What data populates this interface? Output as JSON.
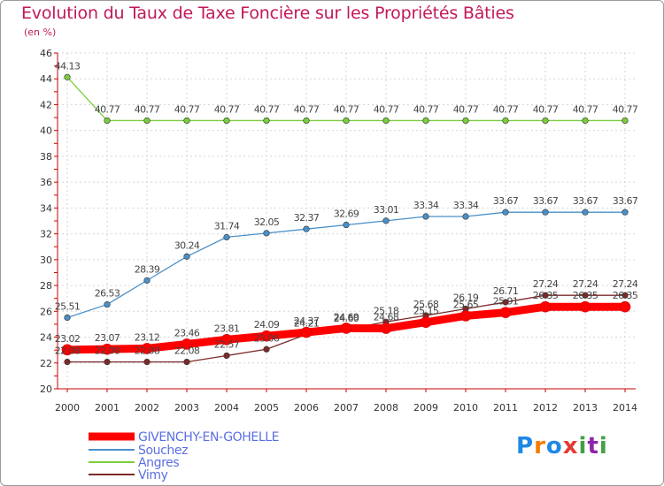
{
  "header": {
    "title": "Evolution du Taux de Taxe Foncière sur les Propriétés Bâties",
    "unit": "(en %)"
  },
  "logo": {
    "text": "Proxiti",
    "letters": [
      "P",
      "r",
      "o",
      "x",
      "i",
      "t",
      "i"
    ]
  },
  "chart_data": {
    "type": "line",
    "title": "Evolution du Taux de Taxe Foncière sur les Propriétés Bâties",
    "ylabel": "(en %)",
    "xlabel": "",
    "ylim": [
      20,
      46
    ],
    "yticks": [
      20,
      22,
      24,
      26,
      28,
      30,
      32,
      34,
      36,
      38,
      40,
      42,
      44,
      46
    ],
    "categories": [
      "2000",
      "2001",
      "2002",
      "2003",
      "2004",
      "2005",
      "2006",
      "2007",
      "2008",
      "2009",
      "2010",
      "2011",
      "2012",
      "2013",
      "2014"
    ],
    "grid": true,
    "legend_position": "bottom-left",
    "series": [
      {
        "name": "GIVENCHY-EN-GOHELLE",
        "color": "#ff0000",
        "values": [
          23.02,
          23.07,
          23.12,
          23.46,
          23.81,
          24.09,
          24.37,
          24.69,
          24.68,
          25.15,
          25.65,
          25.91,
          26.35,
          26.35,
          26.35
        ],
        "labels": [
          "23.02",
          "23.07",
          "23.12",
          "23.46",
          "23.81",
          "24.09",
          "24.37",
          "24.69",
          "24.68",
          "25.15",
          "25.65",
          "25.91",
          "26.35",
          "26.35",
          "26.35"
        ]
      },
      {
        "name": "Souchez",
        "color": "#4a90c8",
        "values": [
          25.51,
          26.53,
          28.39,
          30.24,
          31.74,
          32.05,
          32.37,
          32.69,
          33.01,
          33.34,
          33.34,
          33.67,
          33.67,
          33.67,
          33.67
        ],
        "labels": [
          "25.51",
          "26.53",
          "28.39",
          "30.24",
          "31.74",
          "32.05",
          "32.37",
          "32.69",
          "33.01",
          "33.34",
          "33.34",
          "33.67",
          "33.67",
          "33.67",
          "33.67"
        ]
      },
      {
        "name": "Angres",
        "color": "#7acd3e",
        "values": [
          44.13,
          40.77,
          40.77,
          40.77,
          40.77,
          40.77,
          40.77,
          40.77,
          40.77,
          40.77,
          40.77,
          40.77,
          40.77,
          40.77,
          40.77
        ],
        "labels": [
          "44.13",
          "40.77",
          "40.77",
          "40.77",
          "40.77",
          "40.77",
          "40.77",
          "40.77",
          "40.77",
          "40.77",
          "40.77",
          "40.77",
          "40.77",
          "40.77",
          "40.77"
        ]
      },
      {
        "name": "Vimy",
        "color": "#7b2a2a",
        "values": [
          22.08,
          22.08,
          22.08,
          22.08,
          22.57,
          23.06,
          24.21,
          24.6,
          25.18,
          25.68,
          26.19,
          26.71,
          27.24,
          27.24,
          27.24
        ],
        "labels": [
          "22.08",
          "22.08",
          "22.08",
          "22.08",
          "22.57",
          "23.06",
          "24.21",
          "24.60",
          "25.18",
          "25.68",
          "26.19",
          "26.71",
          "27.24",
          "27.24",
          "27.24"
        ]
      }
    ]
  }
}
